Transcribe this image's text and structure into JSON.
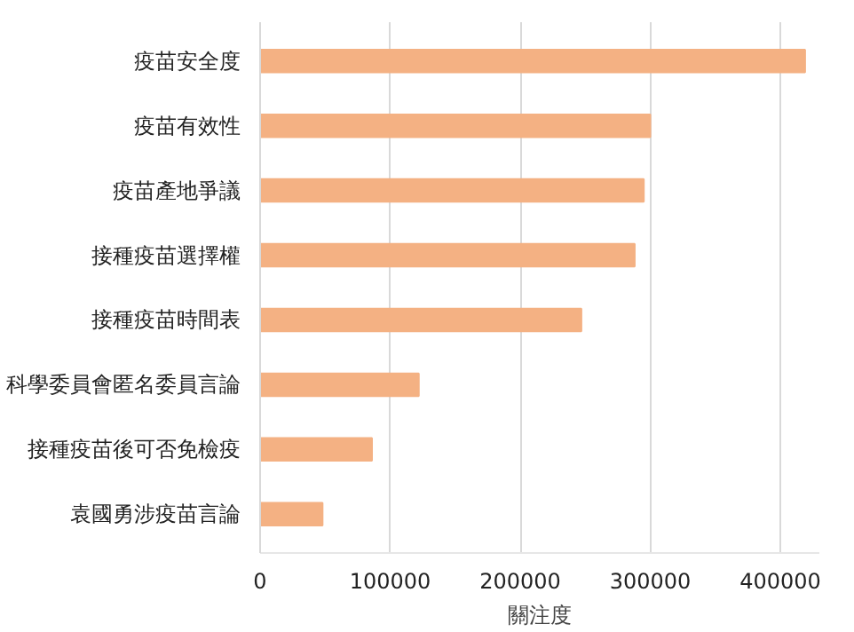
{
  "chart_data": {
    "type": "bar",
    "orientation": "horizontal",
    "xlabel": "關注度",
    "categories": [
      "疫苗安全度",
      "疫苗有效性",
      "疫苗產地爭議",
      "接種疫苗選擇權",
      "接種疫苗時間表",
      "科學委員會匿名委員言論",
      "接種疫苗後可否免檢疫",
      "袁國勇涉疫苗言論"
    ],
    "values": [
      419000,
      300000,
      295000,
      288000,
      247000,
      122000,
      86000,
      48000
    ],
    "color": "#f4b183",
    "xlim": [
      0,
      430000
    ],
    "xticks": [
      0,
      100000,
      200000,
      300000,
      400000
    ],
    "grid": "x"
  }
}
